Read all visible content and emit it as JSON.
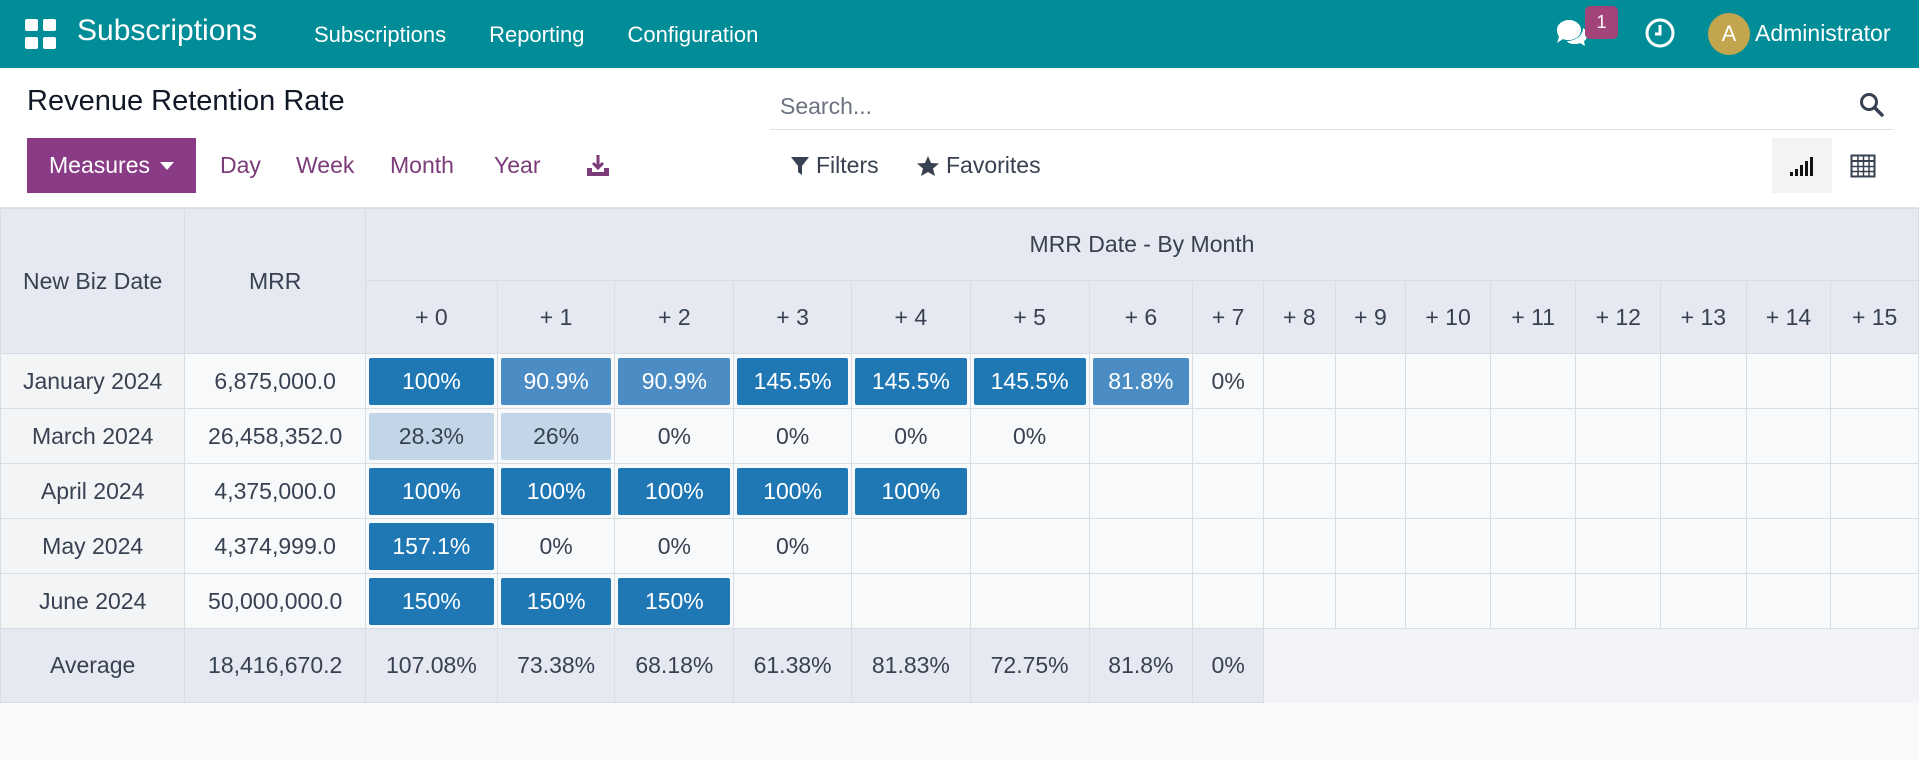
{
  "navbar": {
    "brand": "Subscriptions",
    "menu": [
      "Subscriptions",
      "Reporting",
      "Configuration"
    ],
    "message_count": "1",
    "avatar_letter": "A",
    "user_name": "Administrator"
  },
  "control_panel": {
    "title": "Revenue Retention Rate",
    "search_placeholder": "Search...",
    "measures_label": "Measures",
    "intervals": [
      "Day",
      "Week",
      "Month",
      "Year"
    ],
    "filters_label": "Filters",
    "favorites_label": "Favorites"
  },
  "table": {
    "row_header": "New Biz Date",
    "measure_header": "MRR",
    "group_header": "MRR Date - By Month",
    "columns": [
      "+ 0",
      "+ 1",
      "+ 2",
      "+ 3",
      "+ 4",
      "+ 5",
      "+ 6",
      "+ 7",
      "+ 8",
      "+ 9",
      "+ 10",
      "+ 11",
      "+ 12",
      "+ 13",
      "+ 14",
      "+ 15"
    ],
    "rows": [
      {
        "label": "January 2024",
        "mrr": "6,875,000.0",
        "cells": [
          "100%",
          "90.9%",
          "90.9%",
          "145.5%",
          "145.5%",
          "145.5%",
          "81.8%",
          "0%",
          "",
          "",
          "",
          "",
          "",
          "",
          "",
          ""
        ]
      },
      {
        "label": "March 2024",
        "mrr": "26,458,352.0",
        "cells": [
          "28.3%",
          "26%",
          "0%",
          "0%",
          "0%",
          "0%",
          "",
          "",
          "",
          "",
          "",
          "",
          "",
          "",
          "",
          ""
        ]
      },
      {
        "label": "April 2024",
        "mrr": "4,375,000.0",
        "cells": [
          "100%",
          "100%",
          "100%",
          "100%",
          "100%",
          "",
          "",
          "",
          "",
          "",
          "",
          "",
          "",
          "",
          "",
          ""
        ]
      },
      {
        "label": "May 2024",
        "mrr": "4,374,999.0",
        "cells": [
          "157.1%",
          "0%",
          "0%",
          "0%",
          "",
          "",
          "",
          "",
          "",
          "",
          "",
          "",
          "",
          "",
          "",
          ""
        ]
      },
      {
        "label": "June 2024",
        "mrr": "50,000,000.0",
        "cells": [
          "150%",
          "150%",
          "150%",
          "",
          "",
          "",
          "",
          "",
          "",
          "",
          "",
          "",
          "",
          "",
          "",
          ""
        ]
      }
    ],
    "average": {
      "label": "Average",
      "mrr": "18,416,670.2",
      "cells": [
        "107.08%",
        "73.38%",
        "68.18%",
        "61.38%",
        "81.83%",
        "72.75%",
        "81.8%",
        "0%"
      ]
    }
  },
  "colors": {
    "navbar": "#018d98",
    "primary": "#8a3b85",
    "cell_full": "#1f77b4",
    "cell_mid": "#4a8cc3",
    "cell_light": "#c3d6e7"
  }
}
